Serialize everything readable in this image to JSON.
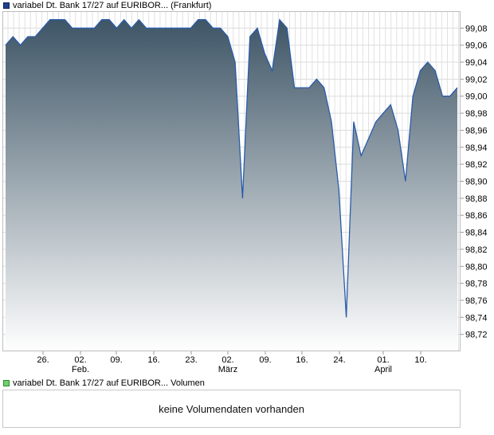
{
  "price_legend": {
    "label": "variabel Dt. Bank 17/27 auf EURIBOR... (Frankfurt)",
    "swatch_color": "#1f3f8f"
  },
  "volume_legend": {
    "label": "variabel Dt. Bank 17/27 auf EURIBOR... Volumen",
    "swatch_color": "#6fd06f"
  },
  "volume_panel": {
    "message": "keine Volumendaten vorhanden"
  },
  "chart_data": {
    "type": "area",
    "title": "",
    "xlabel": "",
    "ylabel": "",
    "ylim": [
      98.7,
      99.1
    ],
    "grid": true,
    "y_axis_position": "right",
    "line_color": "#2a5caa",
    "fill_gradient": [
      "#3e5566",
      "#ffffff"
    ],
    "y_ticks": [
      "99,08",
      "99,06",
      "99,04",
      "99,02",
      "99,00",
      "98,98",
      "98,96",
      "98,94",
      "98,92",
      "98,90",
      "98,88",
      "98,86",
      "98,84",
      "98,82",
      "98,80",
      "98,78",
      "98,76",
      "98,74",
      "98,72"
    ],
    "x_ticks": [
      {
        "label": "26.",
        "sub": ""
      },
      {
        "label": "02.",
        "sub": "Feb."
      },
      {
        "label": "09.",
        "sub": ""
      },
      {
        "label": "16.",
        "sub": ""
      },
      {
        "label": "23.",
        "sub": ""
      },
      {
        "label": "02.",
        "sub": "März"
      },
      {
        "label": "09.",
        "sub": ""
      },
      {
        "label": "16.",
        "sub": ""
      },
      {
        "label": "24.",
        "sub": ""
      },
      {
        "label": "01.",
        "sub": "April"
      },
      {
        "label": "10.",
        "sub": ""
      }
    ],
    "series": [
      {
        "values": [
          99.06,
          99.07,
          99.06,
          99.07,
          99.07,
          99.08,
          99.09,
          99.09,
          99.09,
          99.08,
          99.08,
          99.08,
          99.08,
          99.09,
          99.09,
          99.08,
          99.09,
          99.08,
          99.09,
          99.08,
          99.08,
          99.08,
          99.08,
          99.08,
          99.08,
          99.08,
          99.09,
          99.09,
          99.08,
          99.08,
          99.07,
          99.04,
          98.88,
          99.07,
          99.08,
          99.05,
          99.03,
          99.09,
          99.08,
          99.01,
          99.01,
          99.01,
          99.02,
          99.01,
          98.97,
          98.89,
          98.74,
          98.97,
          98.93,
          98.95,
          98.97,
          98.98,
          98.99,
          98.96,
          98.9,
          99.0,
          99.03,
          99.04,
          99.03,
          99.0,
          99.0,
          99.01
        ]
      }
    ]
  }
}
